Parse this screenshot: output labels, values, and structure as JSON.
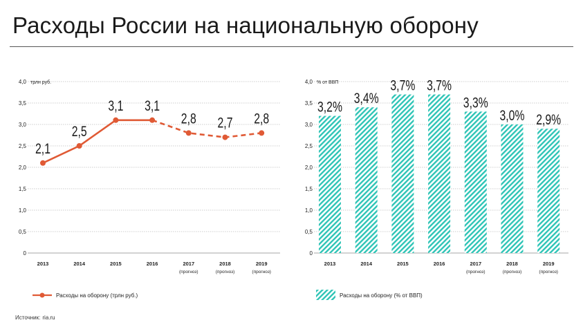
{
  "title": "Расходы России на национальную оборону",
  "source": {
    "label": "Источник:",
    "value": "ria.ru"
  },
  "colors": {
    "line": "#e05a35",
    "bar": "#2ec4b6",
    "grid": "#bfbfbf",
    "text": "#222222"
  },
  "chart_data": [
    {
      "type": "line",
      "unit_label": "трлн руб.",
      "x": [
        "2013",
        "2014",
        "2015",
        "2016",
        "2017",
        "2018",
        "2019"
      ],
      "x_sub": [
        "",
        "",
        "",
        "",
        "(прогноз)",
        "(прогноз)",
        "(прогноз)"
      ],
      "values": [
        2.1,
        2.5,
        3.1,
        3.1,
        2.8,
        2.7,
        2.8
      ],
      "labels": [
        "2,1",
        "2,5",
        "3,1",
        "3,1",
        "2,8",
        "2,7",
        "2,8"
      ],
      "forecast_from_index": 3,
      "yticks": [
        "0",
        "0,5",
        "1,0",
        "1,5",
        "2,0",
        "2,5",
        "3,0",
        "3,5",
        "4,0"
      ],
      "ylim": [
        0,
        4
      ],
      "legend": "Расходы на оборону (трлн руб.)",
      "grid": true
    },
    {
      "type": "bar",
      "unit_label": "% от ВВП",
      "categories": [
        "2013",
        "2014",
        "2015",
        "2016",
        "2017",
        "2018",
        "2019"
      ],
      "x_sub": [
        "",
        "",
        "",
        "",
        "(прогноз)",
        "(прогноз)",
        "(прогноз)"
      ],
      "values": [
        3.2,
        3.4,
        3.7,
        3.7,
        3.3,
        3.0,
        2.9
      ],
      "labels": [
        "3,2%",
        "3,4%",
        "3,7%",
        "3,7%",
        "3,3%",
        "3,0%",
        "2,9%"
      ],
      "yticks": [
        "0",
        "0,5",
        "1,0",
        "1,5",
        "2,0",
        "2,5",
        "3,0",
        "3,5",
        "4,0"
      ],
      "ylim": [
        0,
        4
      ],
      "legend": "Расходы на оборону (% от ВВП)",
      "grid": true
    }
  ]
}
